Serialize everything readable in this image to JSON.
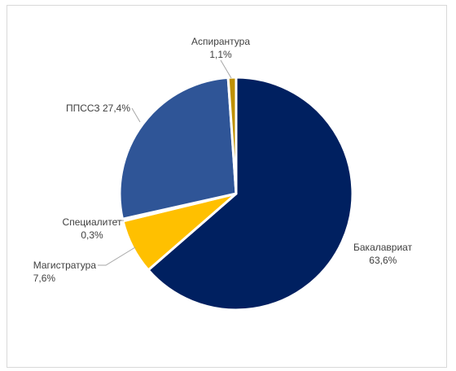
{
  "chart_data": {
    "type": "pie",
    "title": "",
    "slices": [
      {
        "label": "Бакалавриат",
        "value": 63.6,
        "value_text": "63,6%",
        "color": "#002060"
      },
      {
        "label": "Магистратура",
        "value": 7.6,
        "value_text": "7,6%",
        "color": "#FFC000"
      },
      {
        "label": "Специалитет",
        "value": 0.3,
        "value_text": "0,3%",
        "color": "#8FAADC"
      },
      {
        "label": "ППССЗ",
        "value": 27.4,
        "value_text": "27,4%",
        "color": "#2F5597"
      },
      {
        "label": "Аспирантура",
        "value": 1.1,
        "value_text": "1,1%",
        "color": "#BF9000"
      }
    ],
    "legend": "none",
    "data_labels": "outside with leader lines"
  }
}
